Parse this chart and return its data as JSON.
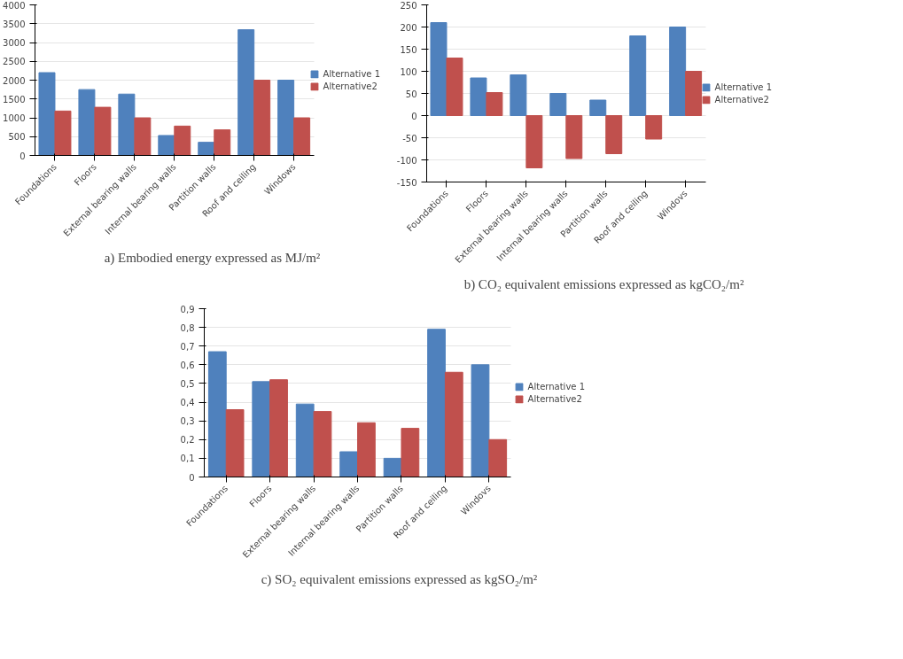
{
  "chart_data": [
    {
      "type": "bar",
      "title": "a) Embodied energy expressed as MJ/m²",
      "categories": [
        "Foundations",
        "Floors",
        "External bearing walls",
        "Internal bearing walls",
        "Partition walls",
        "Roof and ceiling",
        "Windows"
      ],
      "series": [
        {
          "name": "Alternative 1",
          "color": "#4f81bd",
          "values": [
            2200,
            1750,
            1630,
            530,
            350,
            3340,
            2000
          ]
        },
        {
          "name": "Alternative2",
          "color": "#c0504d",
          "values": [
            1180,
            1280,
            1000,
            780,
            680,
            2000,
            1000
          ]
        }
      ],
      "ylim": [
        0,
        4000
      ],
      "yticks": [
        0,
        500,
        1000,
        1500,
        2000,
        2500,
        3000,
        3500,
        4000
      ],
      "grid": "y",
      "legend": "right"
    },
    {
      "type": "bar",
      "title": "b) CO₂ equivalent emissions expressed as kgCO₂/m²",
      "categories": [
        "Foundations",
        "Floors",
        "External bearing walls",
        "Internal bearing walls",
        "Partition walls",
        "Roof and ceiling",
        "Windovs"
      ],
      "series": [
        {
          "name": "Alternative 1",
          "color": "#4f81bd",
          "values": [
            210,
            85,
            92,
            50,
            35,
            180,
            200
          ]
        },
        {
          "name": "Alternative2",
          "color": "#c0504d",
          "values": [
            130,
            52,
            -118,
            -97,
            -86,
            -53,
            100
          ]
        }
      ],
      "ylim": [
        -150,
        250
      ],
      "yticks": [
        -150,
        -100,
        -50,
        0,
        50,
        100,
        150,
        200,
        250
      ],
      "grid": "y",
      "legend": "right"
    },
    {
      "type": "bar",
      "title": "c) SO₂ equivalent emissions expressed as kgSO₂/m²",
      "categories": [
        "Foundations",
        "Floors",
        "External bearing walls",
        "Internal bearing walls",
        "Partition walls",
        "Roof and ceiling",
        "Windovs"
      ],
      "series": [
        {
          "name": "Alternative 1",
          "color": "#4f81bd",
          "values": [
            0.67,
            0.51,
            0.39,
            0.135,
            0.1,
            0.79,
            0.6
          ]
        },
        {
          "name": "Alternative2",
          "color": "#c0504d",
          "values": [
            0.36,
            0.52,
            0.35,
            0.29,
            0.26,
            0.56,
            0.2
          ]
        }
      ],
      "ylim": [
        0,
        0.9
      ],
      "yticks": [
        0,
        {
          "value": 0.1,
          "label": "0,1"
        },
        {
          "value": 0.2,
          "label": "0,2"
        },
        {
          "value": 0.3,
          "label": "0,3"
        },
        {
          "value": 0.4,
          "label": "0,4"
        },
        {
          "value": 0.5,
          "label": "0,5"
        },
        {
          "value": 0.6,
          "label": "0,6"
        },
        {
          "value": 0.7,
          "label": "0,7"
        },
        {
          "value": 0.8,
          "label": "0,8"
        },
        {
          "value": 0.9,
          "label": "0,9"
        }
      ],
      "grid": "y",
      "legend": "right"
    }
  ]
}
